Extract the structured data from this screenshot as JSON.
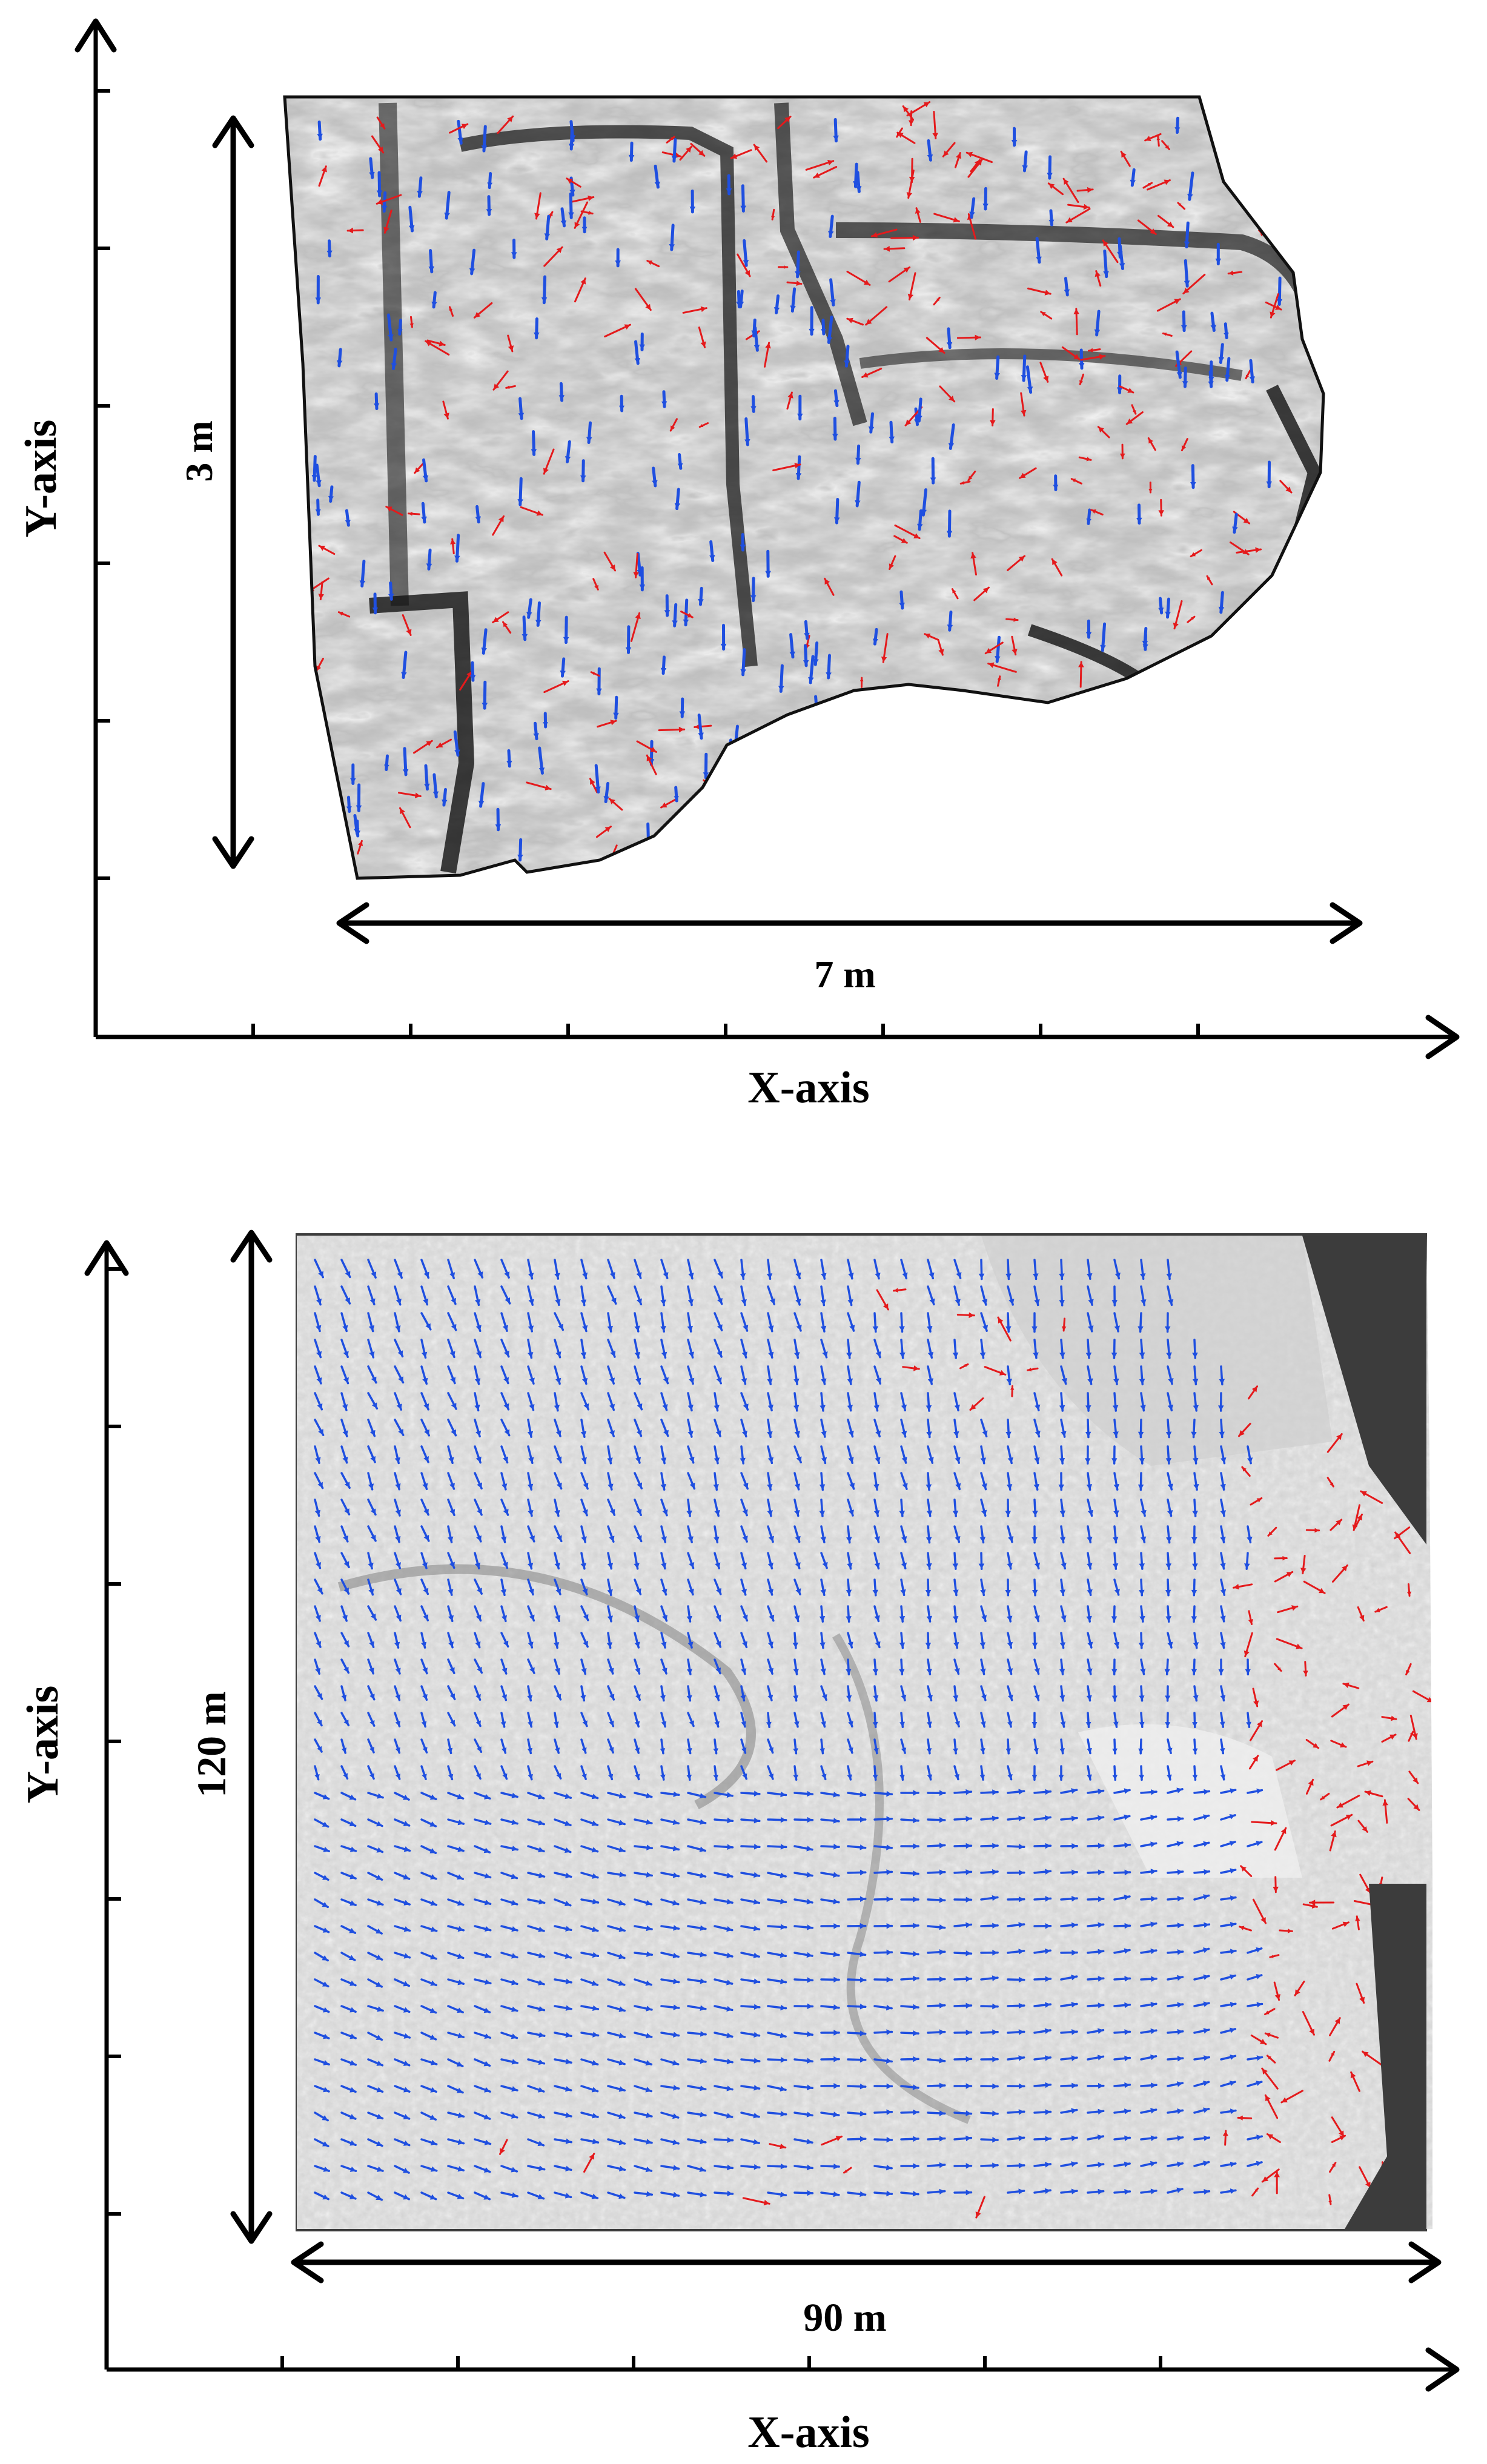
{
  "colors": {
    "stable_vector": "#1f4fe0",
    "moving_vector": "#e41a1c",
    "hillshade_dark": "#2b2b2b",
    "hillshade_light": "#e6e6e6",
    "background_mask": "#3f3f3f"
  },
  "panels": [
    {
      "id": "top",
      "x_axis_label": "X-axis",
      "y_axis_label": "Y-axis",
      "width_label": "7 m",
      "height_label": "3 m"
    },
    {
      "id": "bottom",
      "x_axis_label": "X-axis",
      "y_axis_label": "Y-axis",
      "width_label": "90 m",
      "height_label": "120 m"
    }
  ]
}
